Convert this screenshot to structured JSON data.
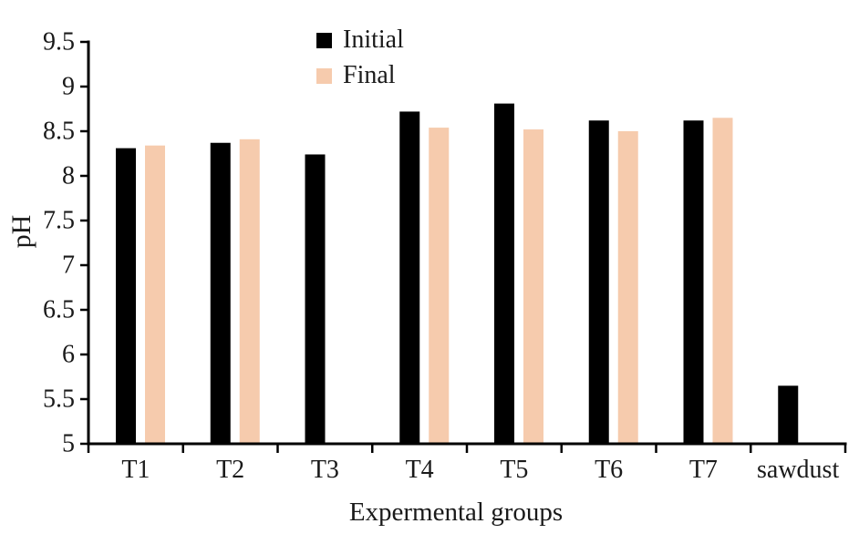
{
  "chart_data": {
    "type": "bar",
    "title": "",
    "xlabel": "Expermental groups",
    "ylabel": "pH",
    "categories": [
      "T1",
      "T2",
      "T3",
      "T4",
      "T5",
      "T6",
      "T7",
      "sawdust"
    ],
    "series": [
      {
        "name": "Initial",
        "color": "#000000",
        "values": [
          8.31,
          8.37,
          8.24,
          8.72,
          8.81,
          8.62,
          8.62,
          5.65
        ]
      },
      {
        "name": "Final",
        "color": "#F6CBAD",
        "values": [
          8.34,
          8.41,
          null,
          8.54,
          8.52,
          8.5,
          8.65,
          null
        ]
      }
    ],
    "ylim": [
      5,
      9.5
    ],
    "ytick_step": 0.5,
    "yticks": [
      "5",
      "5.5",
      "6",
      "6.5",
      "7",
      "7.5",
      "8",
      "8.5",
      "9",
      "9.5"
    ],
    "grid": false,
    "legend_position": "top-center",
    "bars_baseline": 5
  },
  "colors": {
    "axis": "#000000",
    "text": "#1a1a1a",
    "background": "#ffffff"
  }
}
